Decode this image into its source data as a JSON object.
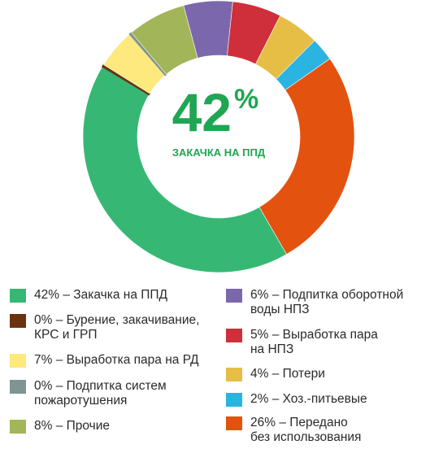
{
  "chart_data": {
    "type": "pie",
    "center_value": "42",
    "center_unit": "%",
    "center_label": "ЗАКАЧКА НА ППД",
    "slices": [
      {
        "value": 42,
        "color": "#36b874",
        "legend": "42% – Закачка на ППД"
      },
      {
        "value": 0.15,
        "color": "#6b3210",
        "legend": "0% – Бурение, закачивание,\nКРС и ГРП"
      },
      {
        "value": 7,
        "color": "#fde97d",
        "legend": "7% – Выработка пара на РД"
      },
      {
        "value": 0.15,
        "color": "#7e9594",
        "legend": "0% – Подпитка систем\nпожаротушения"
      },
      {
        "value": 8,
        "color": "#a2b559",
        "legend": "8% – Прочие"
      },
      {
        "value": 6,
        "color": "#7b68ac",
        "legend": "6% – Подпитка  оборотной\nводы НПЗ"
      },
      {
        "value": 5,
        "color": "#cf2f3a",
        "legend": "5% – Выработка пара\nна НПЗ"
      },
      {
        "value": 4,
        "color": "#e6bd45",
        "legend": "4% – Потери"
      },
      {
        "value": 2,
        "color": "#2bb3e2",
        "legend": "2% – Хоз.-питьевые"
      },
      {
        "value": 26,
        "color": "#e4520f",
        "legend": "26% – Передано\nбез использования"
      }
    ]
  }
}
